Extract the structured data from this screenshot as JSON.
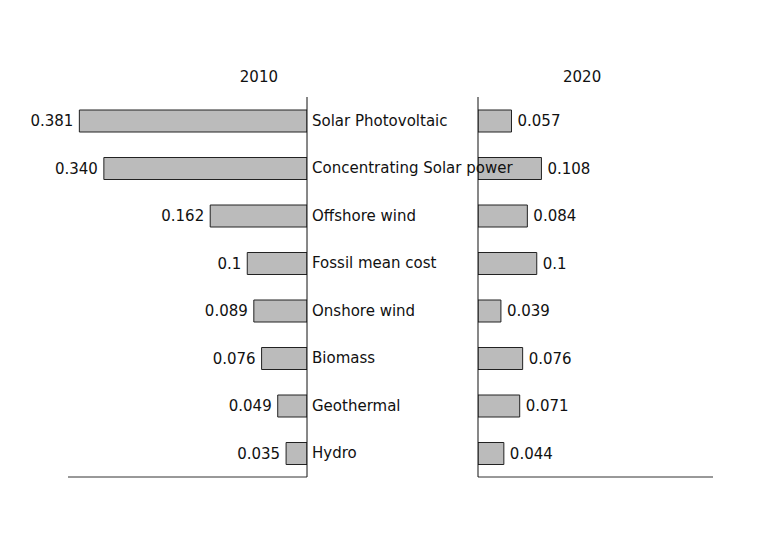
{
  "chart_data": {
    "type": "bar",
    "orientation": "horizontal",
    "data_labels": true,
    "tick_labels": false,
    "categories": [
      "Solar Photovoltaic",
      "Concentrating Solar power",
      "Offshore wind",
      "Fossil mean cost",
      "Onshore wind",
      "Biomass",
      "Geothermal",
      "Hydro"
    ],
    "series": [
      {
        "name": "2010",
        "color": "#bbbbbb",
        "values": [
          0.381,
          0.34,
          0.162,
          0.1,
          0.089,
          0.076,
          0.049,
          0.035
        ],
        "value_labels": [
          "0.381",
          "0.340",
          "0.162",
          "0.1",
          "0.089",
          "0.076",
          "0.049",
          "0.035"
        ]
      },
      {
        "name": "2020",
        "color": "#bbbbbb",
        "values": [
          0.057,
          0.108,
          0.084,
          0.1,
          0.039,
          0.076,
          0.071,
          0.044
        ]
      }
    ],
    "xlim": [
      0,
      0.4
    ]
  }
}
